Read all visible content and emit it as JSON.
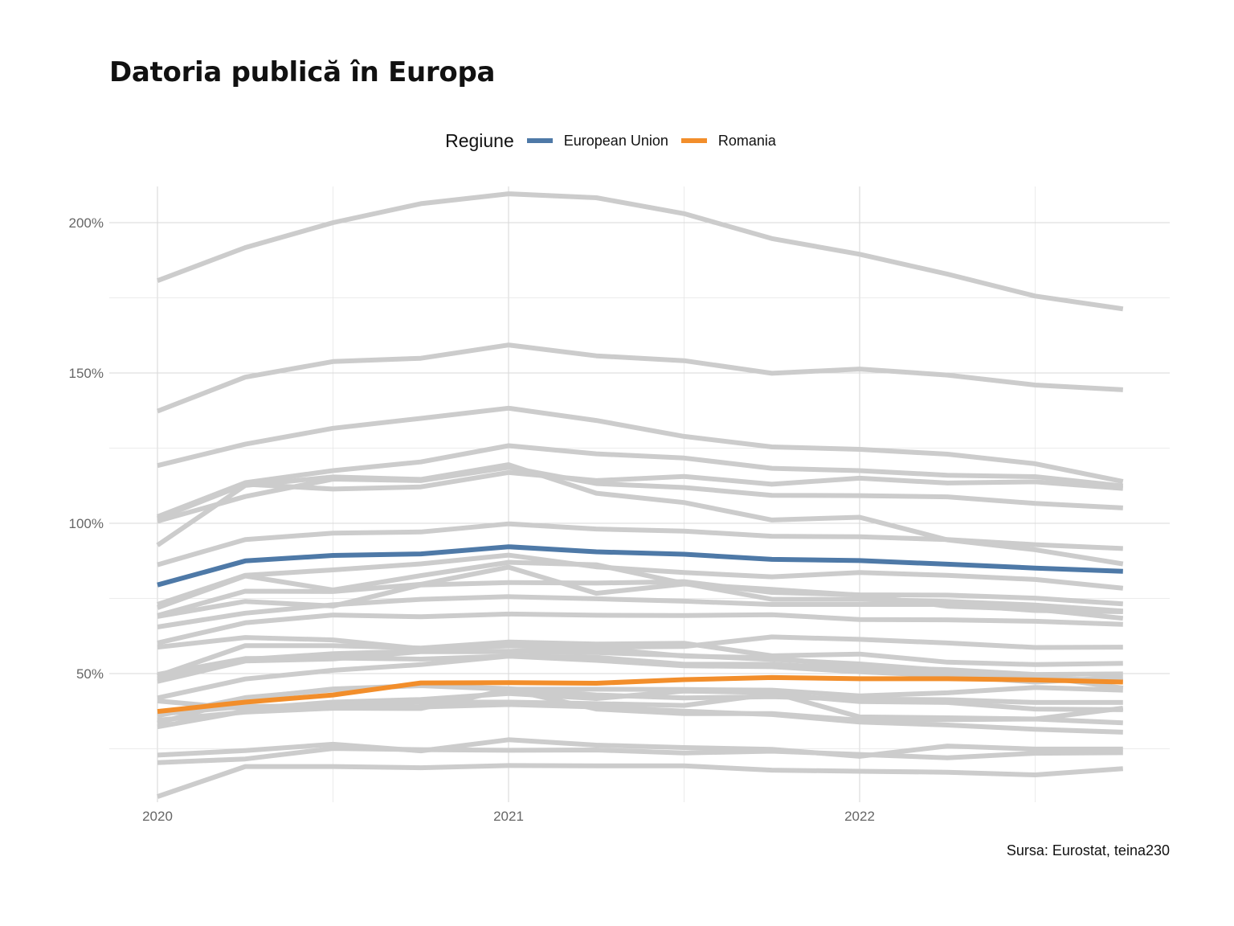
{
  "title": "Datoria publică în Europa",
  "source": "Sursa: Eurostat, teina230",
  "legend": {
    "title": "Regiune",
    "items": [
      {
        "label": "European Union",
        "color": "#4E79A7"
      },
      {
        "label": "Romania",
        "color": "#F28E2B"
      }
    ]
  },
  "chart_data": {
    "type": "line",
    "x": [
      2020.0,
      2020.25,
      2020.5,
      2020.75,
      2021.0,
      2021.25,
      2021.5,
      2021.75,
      2022.0,
      2022.25,
      2022.5,
      2022.75
    ],
    "x_ticks": [
      "2020",
      "2021",
      "2022"
    ],
    "y_ticks": [
      "50%",
      "100%",
      "150%",
      "200%"
    ],
    "ylim": [
      6,
      212
    ],
    "grid": true,
    "legend_position": "top",
    "colors": {
      "highlight_eu": "#4E79A7",
      "highlight_ro": "#F28E2B",
      "background": "#cccccc"
    },
    "series": [
      {
        "name": "European Union",
        "highlight": true,
        "values": [
          79.5,
          87.5,
          89.3,
          89.8,
          92.2,
          90.5,
          89.7,
          88.0,
          87.6,
          86.4,
          85.1,
          84.0
        ]
      },
      {
        "name": "Romania",
        "highlight": true,
        "values": [
          37.4,
          40.5,
          42.9,
          46.9,
          47.0,
          46.8,
          48.0,
          48.7,
          48.3,
          48.3,
          47.9,
          47.2
        ]
      },
      {
        "values": [
          180.7,
          191.7,
          200.0,
          206.3,
          209.6,
          208.3,
          203.0,
          194.7,
          189.5,
          182.9,
          175.6,
          171.3
        ]
      },
      {
        "values": [
          137.3,
          148.6,
          153.8,
          154.9,
          159.3,
          155.7,
          154.1,
          149.9,
          151.3,
          149.3,
          146.0,
          144.4
        ]
      },
      {
        "values": [
          119.2,
          126.3,
          131.6,
          134.9,
          138.3,
          134.2,
          128.9,
          125.4,
          124.6,
          123.0,
          119.8,
          113.9
        ]
      },
      {
        "values": [
          102.2,
          113.5,
          117.5,
          120.4,
          125.8,
          123.1,
          121.7,
          118.3,
          117.5,
          116.0,
          115.5,
          112.4
        ]
      },
      {
        "values": [
          101.5,
          113.0,
          111.4,
          112.1,
          116.9,
          114.2,
          115.6,
          113.0,
          115.0,
          113.4,
          113.8,
          111.6
        ]
      },
      {
        "values": [
          100.7,
          108.9,
          114.7,
          114.2,
          118.6,
          113.2,
          111.9,
          109.3,
          109.2,
          108.8,
          106.6,
          105.1
        ]
      },
      {
        "values": [
          92.7,
          112.6,
          115.4,
          114.6,
          119.5,
          110.0,
          106.9,
          101.1,
          102.0,
          94.5,
          91.2,
          86.5
        ]
      },
      {
        "values": [
          86.2,
          94.6,
          96.7,
          97.1,
          99.8,
          98.1,
          97.4,
          95.7,
          95.5,
          94.6,
          92.9,
          91.6
        ]
      },
      {
        "values": [
          73.0,
          82.7,
          84.5,
          86.5,
          89.4,
          85.5,
          83.6,
          82.2,
          83.6,
          82.7,
          81.3,
          78.4
        ]
      },
      {
        "values": [
          71.9,
          82.5,
          77.8,
          82.6,
          87.0,
          86.2,
          80.0,
          74.7,
          74.7,
          74.0,
          72.8,
          70.8
        ]
      },
      {
        "values": [
          69.3,
          77.4,
          77.3,
          79.7,
          85.4,
          76.7,
          79.8,
          78.0,
          76.1,
          72.4,
          71.4,
          68.4
        ]
      },
      {
        "values": [
          69.0,
          74.0,
          72.5,
          79.5,
          80.3,
          80.1,
          80.6,
          77.0,
          76.2,
          76.1,
          75.1,
          73.2
        ]
      },
      {
        "values": [
          65.5,
          70.1,
          72.9,
          74.7,
          75.6,
          74.9,
          74.1,
          73.0,
          73.0,
          73.0,
          71.0,
          70.6
        ]
      },
      {
        "values": [
          60.2,
          66.9,
          69.5,
          68.9,
          69.8,
          69.4,
          69.3,
          69.6,
          68.0,
          67.9,
          67.4,
          66.4
        ]
      },
      {
        "values": [
          58.8,
          62.0,
          61.2,
          58.3,
          59.2,
          58.8,
          59.0,
          62.2,
          61.4,
          60.2,
          58.7,
          58.8
        ]
      },
      {
        "values": [
          49.2,
          59.3,
          59.3,
          58.5,
          60.5,
          59.8,
          60.1,
          55.9,
          56.5,
          53.8,
          53.0,
          53.4
        ]
      },
      {
        "values": [
          48.3,
          54.7,
          56.6,
          57.5,
          57.4,
          58.4,
          55.8,
          55.3,
          52.2,
          51.3,
          49.7,
          49.9
        ]
      },
      {
        "values": [
          49.7,
          55.0,
          55.2,
          54.8,
          55.8,
          55.4,
          53.1,
          53.1,
          51.6,
          49.9,
          48.7,
          47.5
        ]
      },
      {
        "values": [
          47.4,
          54.2,
          54.9,
          57.3,
          57.3,
          57.0,
          56.0,
          54.7,
          53.2,
          51.0,
          49.2,
          45.2
        ]
      },
      {
        "values": [
          41.9,
          48.2,
          51.1,
          53.0,
          55.8,
          54.4,
          52.6,
          52.3,
          50.6,
          49.3,
          47.2,
          48.8
        ]
      },
      {
        "values": [
          33.5,
          41.7,
          44.9,
          46.0,
          44.8,
          44.8,
          44.7,
          44.5,
          42.6,
          43.6,
          45.4,
          44.5
        ]
      },
      {
        "values": [
          36.0,
          42.0,
          44.6,
          46.1,
          45.0,
          42.9,
          41.9,
          42.3,
          41.5,
          41.3,
          40.4,
          40.4
        ]
      },
      {
        "values": [
          36.5,
          39.1,
          39.2,
          40.5,
          40.5,
          40.0,
          39.4,
          43.2,
          40.7,
          40.4,
          38.2,
          38.0
        ]
      },
      {
        "values": [
          40.9,
          38.3,
          40.5,
          41.4,
          43.4,
          41.7,
          44.2,
          43.7,
          35.6,
          35.3,
          34.9,
          38.5
        ]
      },
      {
        "values": [
          32.3,
          37.5,
          38.5,
          38.4,
          44.7,
          38.2,
          36.7,
          36.7,
          34.5,
          34.7,
          34.9,
          33.6
        ]
      },
      {
        "values": [
          34.5,
          37.2,
          38.5,
          38.9,
          39.7,
          38.9,
          37.5,
          36.4,
          33.9,
          32.9,
          31.5,
          30.5
        ]
      },
      {
        "values": [
          22.9,
          24.4,
          26.5,
          24.3,
          28.0,
          26.2,
          25.4,
          24.8,
          22.5,
          25.9,
          24.9,
          24.9
        ]
      },
      {
        "values": [
          20.4,
          21.6,
          25.1,
          24.7,
          24.5,
          24.6,
          23.6,
          24.2,
          23.1,
          22.0,
          23.5,
          23.7
        ]
      },
      {
        "values": [
          9.1,
          19.1,
          19.1,
          18.7,
          19.4,
          19.3,
          19.3,
          17.9,
          17.5,
          17.2,
          16.3,
          18.4
        ]
      }
    ]
  }
}
